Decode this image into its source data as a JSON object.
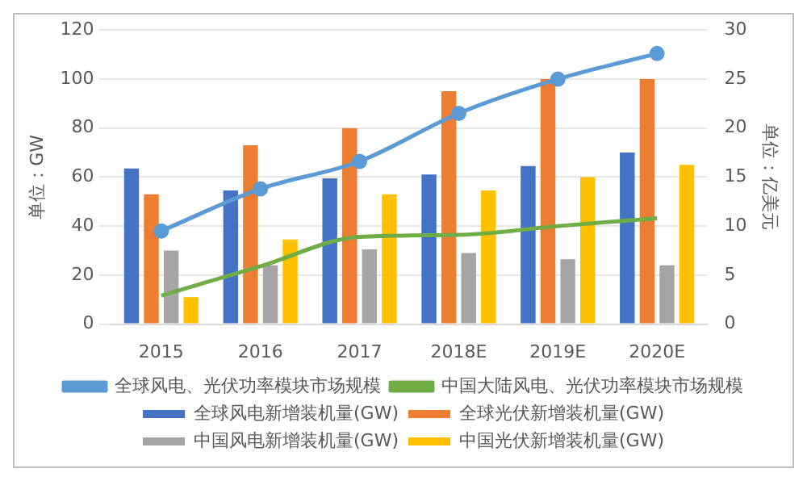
{
  "chart_data": {
    "type": "bar",
    "categories": [
      "2015",
      "2016",
      "2017",
      "2018E",
      "2019E",
      "2020E"
    ],
    "ylabel": "单位：GW",
    "y2label": "单位：亿美元",
    "series": [
      {
        "name": "全球风电新增装机量(GW)",
        "color": "#4472c4",
        "values": [
          63.5,
          54.5,
          59.5,
          61,
          64.5,
          70
        ]
      },
      {
        "name": "全球光伏新增装机量(GW)",
        "color": "#ed7d31",
        "values": [
          53,
          73,
          80,
          95,
          100,
          100
        ]
      },
      {
        "name": "中国风电新增装机量(GW)",
        "color": "#a5a5a5",
        "values": [
          30,
          24,
          30.5,
          29,
          26.5,
          24
        ]
      },
      {
        "name": "中国光伏新增装机量(GW)",
        "color": "#ffc000",
        "values": [
          11,
          34.5,
          53,
          54.5,
          60,
          65
        ]
      },
      {
        "name": "全球风电、光伏功率模块市场规模",
        "type": "line",
        "axis": "y2",
        "marker": "circle",
        "color": "#5b9bd5",
        "values": [
          9.5,
          13.8,
          16.6,
          21.5,
          25,
          27.6
        ]
      },
      {
        "name": "中国大陆风电、光伏功率模块市场规模",
        "type": "line",
        "axis": "y2",
        "marker": "none",
        "color": "#70ad47",
        "values": [
          2.9,
          5.9,
          8.9,
          9.1,
          10,
          10.8
        ]
      }
    ],
    "ylim": [
      0,
      120
    ],
    "yticks": [
      0,
      20,
      40,
      60,
      80,
      100,
      120
    ],
    "y2lim": [
      0,
      30
    ],
    "y2ticks": [
      0,
      5,
      10,
      15,
      20,
      25,
      30
    ],
    "grid": "y",
    "legend": "bottom"
  }
}
